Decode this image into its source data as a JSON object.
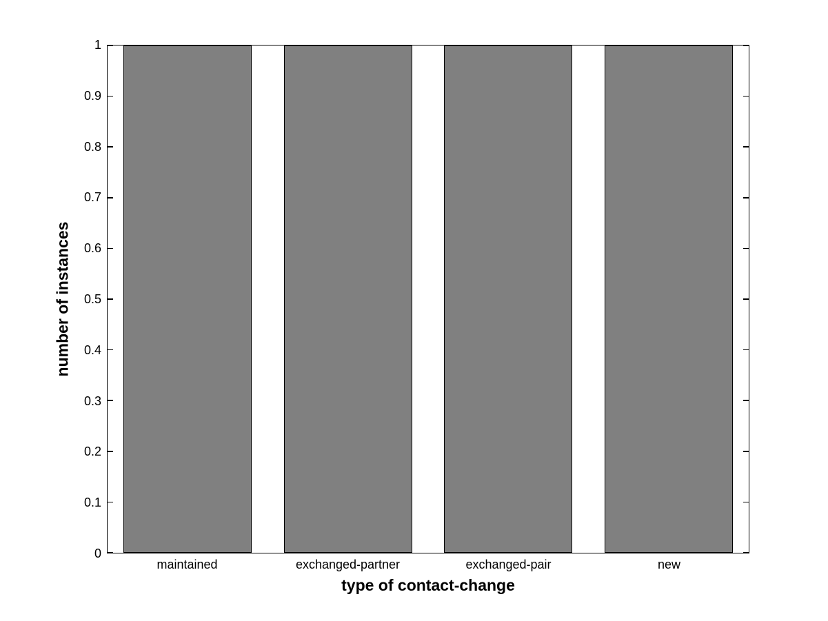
{
  "chart_data": {
    "type": "bar",
    "title": "",
    "categories": [
      "maintained",
      "exchanged-partner",
      "exchanged-pair",
      "new"
    ],
    "values": [
      1,
      1,
      1,
      1
    ],
    "xlabel": "type of contact-change",
    "ylabel": "number of instances",
    "ylim": [
      0,
      1
    ],
    "yticks": [
      0,
      0.1,
      0.2,
      0.3,
      0.4,
      0.5,
      0.6,
      0.7,
      0.8,
      0.9,
      1
    ],
    "ytick_labels": [
      "0",
      "0.1",
      "0.2",
      "0.3",
      "0.4",
      "0.5",
      "0.6",
      "0.7",
      "0.8",
      "0.9",
      "1"
    ],
    "bar_width_fraction": 0.8,
    "bar_color": "#808080",
    "bar_edge_color": "#000000",
    "axis_color": "#000000",
    "background_color": "#ffffff",
    "grid": false,
    "legend": null,
    "tick_direction": "in"
  }
}
